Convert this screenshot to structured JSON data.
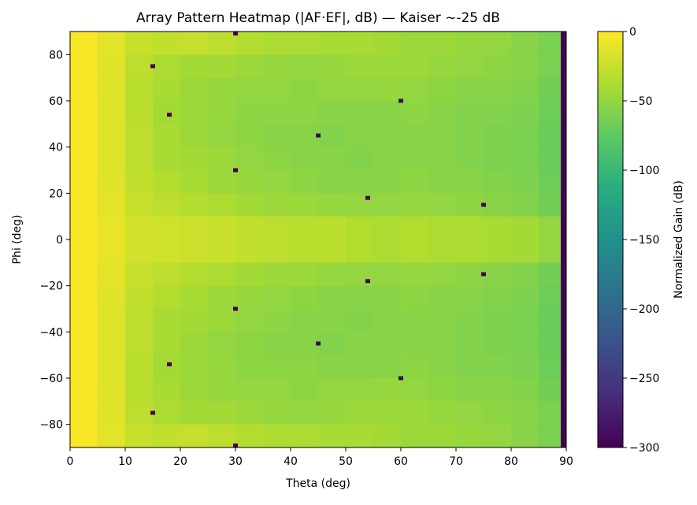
{
  "chart_data": {
    "type": "heatmap",
    "title": "Array Pattern Heatmap (|AF·EF|, dB) — Kaiser ~-25 dB",
    "xlabel": "Theta (deg)",
    "ylabel": "Phi (deg)",
    "colorbar_label": "Normalized Gain (dB)",
    "colormap": "viridis",
    "xlim": [
      0,
      90
    ],
    "ylim": [
      -90,
      90
    ],
    "clim": [
      -300,
      0
    ],
    "xticks": [
      "0",
      "10",
      "20",
      "30",
      "40",
      "50",
      "60",
      "70",
      "80",
      "90"
    ],
    "yticks": [
      "80",
      "60",
      "40",
      "20",
      "0",
      "−20",
      "−40",
      "−60",
      "−80"
    ],
    "cticks": [
      "0",
      "−50",
      "−100",
      "−150",
      "−200",
      "−250",
      "−300"
    ],
    "theta_edges": [
      0,
      5,
      10,
      15,
      20,
      25,
      30,
      35,
      40,
      45,
      50,
      55,
      60,
      65,
      70,
      75,
      80,
      85,
      89,
      90
    ],
    "phi_edges": [
      90,
      80,
      70,
      60,
      50,
      40,
      30,
      20,
      10,
      0,
      -10,
      -20,
      -30,
      -40,
      -50,
      -60,
      -70,
      -80,
      -90
    ],
    "values": [
      [
        -3,
        -12,
        -25,
        -28,
        -26,
        -30,
        -35,
        -38,
        -38,
        -40,
        -40,
        -42,
        -45,
        -45,
        -48,
        -50,
        -55,
        -62,
        -300
      ],
      [
        -3,
        -14,
        -30,
        -38,
        -42,
        -42,
        -45,
        -48,
        -50,
        -48,
        -45,
        -45,
        -45,
        -48,
        -50,
        -52,
        -55,
        -62,
        -300
      ],
      [
        -3,
        -14,
        -32,
        -40,
        -45,
        -48,
        -50,
        -50,
        -52,
        -50,
        -50,
        -48,
        -50,
        -52,
        -55,
        -55,
        -58,
        -65,
        -300
      ],
      [
        -3,
        -15,
        -32,
        -42,
        -45,
        -48,
        -52,
        -52,
        -52,
        -55,
        -55,
        -55,
        -52,
        -55,
        -58,
        -58,
        -60,
        -68,
        -300
      ],
      [
        -3,
        -15,
        -30,
        -40,
        -45,
        -50,
        -52,
        -55,
        -55,
        -58,
        -55,
        -55,
        -55,
        -55,
        -58,
        -60,
        -62,
        -70,
        -300
      ],
      [
        -3,
        -15,
        -30,
        -40,
        -42,
        -45,
        -50,
        -52,
        -55,
        -55,
        -58,
        -55,
        -55,
        -55,
        -58,
        -60,
        -62,
        -70,
        -300
      ],
      [
        -3,
        -14,
        -28,
        -35,
        -40,
        -45,
        -48,
        -50,
        -52,
        -55,
        -55,
        -55,
        -52,
        -55,
        -55,
        -58,
        -60,
        -68,
        -300
      ],
      [
        -3,
        -12,
        -25,
        -30,
        -35,
        -38,
        -42,
        -45,
        -45,
        -48,
        -50,
        -50,
        -48,
        -50,
        -52,
        -55,
        -58,
        -65,
        -300
      ],
      [
        -3,
        -10,
        -20,
        -22,
        -24,
        -25,
        -28,
        -30,
        -32,
        -32,
        -35,
        -38,
        -35,
        -38,
        -38,
        -40,
        -42,
        -50,
        -300
      ],
      [
        -3,
        -10,
        -20,
        -22,
        -24,
        -25,
        -28,
        -30,
        -32,
        -32,
        -35,
        -38,
        -35,
        -38,
        -38,
        -40,
        -42,
        -50,
        -300
      ],
      [
        -3,
        -12,
        -25,
        -30,
        -35,
        -38,
        -42,
        -45,
        -45,
        -48,
        -50,
        -50,
        -48,
        -50,
        -52,
        -55,
        -58,
        -65,
        -300
      ],
      [
        -3,
        -14,
        -28,
        -35,
        -40,
        -45,
        -48,
        -50,
        -52,
        -55,
        -55,
        -55,
        -52,
        -55,
        -55,
        -58,
        -60,
        -68,
        -300
      ],
      [
        -3,
        -15,
        -30,
        -40,
        -42,
        -45,
        -50,
        -52,
        -55,
        -55,
        -58,
        -55,
        -55,
        -55,
        -58,
        -60,
        -62,
        -70,
        -300
      ],
      [
        -3,
        -15,
        -30,
        -40,
        -45,
        -50,
        -52,
        -55,
        -55,
        -58,
        -55,
        -55,
        -55,
        -55,
        -58,
        -60,
        -62,
        -70,
        -300
      ],
      [
        -3,
        -15,
        -32,
        -42,
        -45,
        -48,
        -52,
        -52,
        -52,
        -55,
        -55,
        -55,
        -52,
        -55,
        -58,
        -58,
        -60,
        -68,
        -300
      ],
      [
        -3,
        -14,
        -32,
        -40,
        -45,
        -48,
        -50,
        -50,
        -52,
        -50,
        -50,
        -48,
        -50,
        -52,
        -55,
        -55,
        -58,
        -65,
        -300
      ],
      [
        -3,
        -14,
        -30,
        -38,
        -42,
        -42,
        -45,
        -48,
        -50,
        -48,
        -45,
        -45,
        -45,
        -48,
        -50,
        -52,
        -55,
        -62,
        -300
      ],
      [
        -3,
        -12,
        -25,
        -28,
        -26,
        -30,
        -35,
        -38,
        -38,
        -40,
        -40,
        -42,
        -45,
        -45,
        -48,
        -50,
        -55,
        -62,
        -300
      ]
    ],
    "nulls": [
      {
        "theta": 15,
        "phi": 75,
        "value": -300
      },
      {
        "theta": 18,
        "phi": 54,
        "value": -300
      },
      {
        "theta": 30,
        "phi": 90,
        "value": -300
      },
      {
        "theta": 30,
        "phi": 30,
        "value": -300
      },
      {
        "theta": 45,
        "phi": 45,
        "value": -300
      },
      {
        "theta": 54,
        "phi": 18,
        "value": -300
      },
      {
        "theta": 60,
        "phi": 60,
        "value": -300
      },
      {
        "theta": 75,
        "phi": 15,
        "value": -300
      },
      {
        "theta": 15,
        "phi": -75,
        "value": -300
      },
      {
        "theta": 18,
        "phi": -54,
        "value": -300
      },
      {
        "theta": 30,
        "phi": -90,
        "value": -300
      },
      {
        "theta": 30,
        "phi": -30,
        "value": -300
      },
      {
        "theta": 45,
        "phi": -45,
        "value": -300
      },
      {
        "theta": 54,
        "phi": -18,
        "value": -300
      },
      {
        "theta": 60,
        "phi": -60,
        "value": -300
      },
      {
        "theta": 75,
        "phi": -15,
        "value": -300
      }
    ],
    "grid": false
  }
}
